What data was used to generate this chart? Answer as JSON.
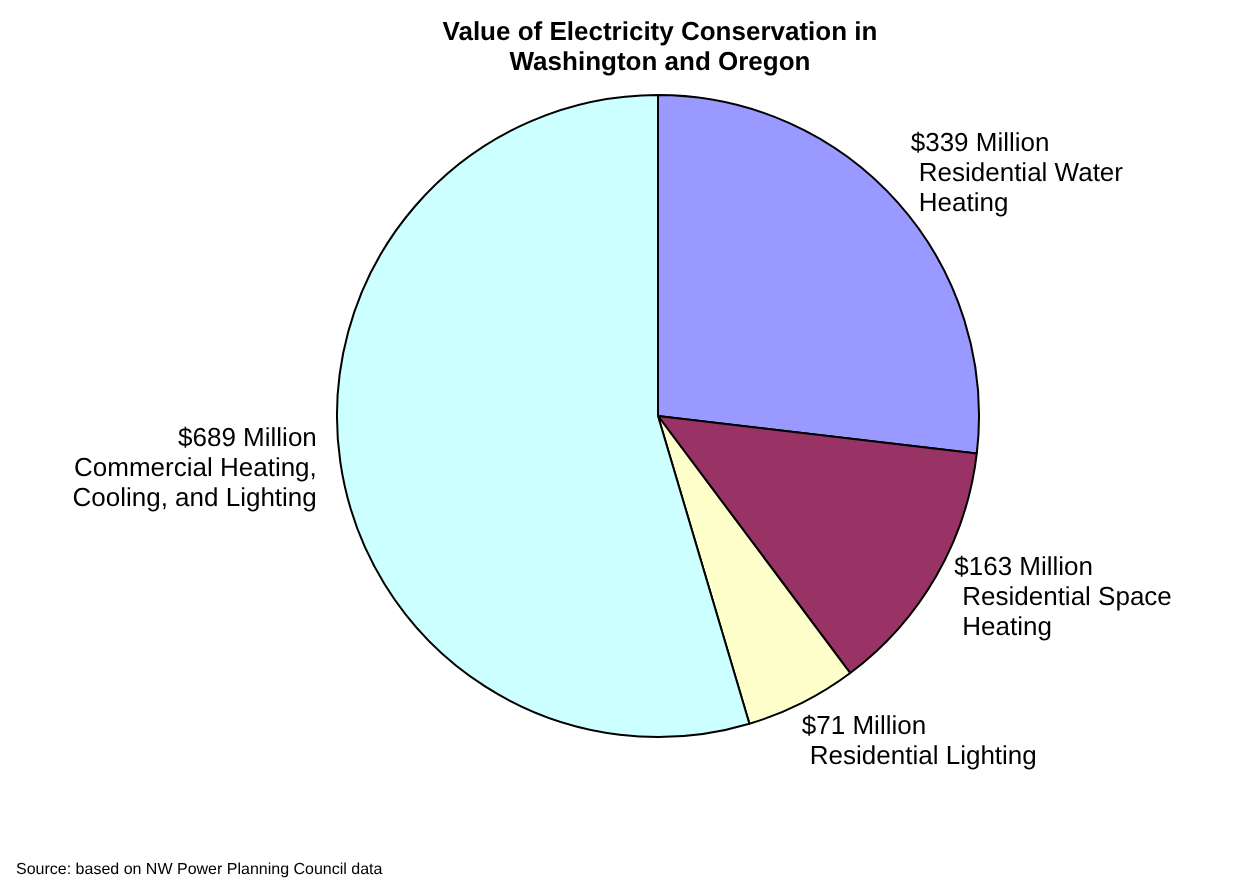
{
  "chart_data": {
    "type": "pie",
    "title": "Value of Electricity Conservation in Washington and Oregon",
    "categories": [
      "Residential Water Heating",
      "Residential Space Heating",
      "Residential Lighting",
      "Commercial Heating, Cooling, and Lighting"
    ],
    "values": [
      339,
      163,
      71,
      689
    ],
    "value_labels": [
      "$339 Million",
      "$163 Million",
      "$71 Million",
      "$689 Million"
    ],
    "colors": [
      "#9999ff",
      "#993366",
      "#ffffcc",
      "#ccffff"
    ],
    "legend": false,
    "annotations": [
      "Source: based on NW Power Planning Council data"
    ]
  }
}
